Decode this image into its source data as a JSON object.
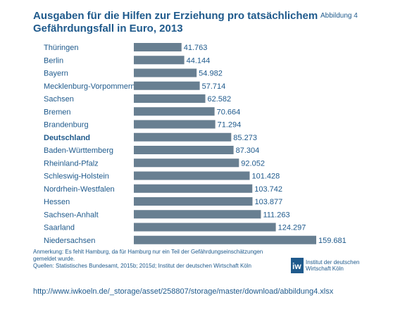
{
  "figure_label": "Abbildung 4",
  "title_line1": "Ausgaben für die Hilfen zur Erziehung pro tatsächlichem",
  "title_line2": "Gefährdungsfall in Euro, 2013",
  "note_line1": "Anmerkung: Es fehlt Hamburg, da für Hamburg nur ein Teil der Gefährdungseinschätzungen",
  "note_line2": "gemeldet wurde.",
  "note_line3": "Quellen: Statistisches Bundesamt, 2015b; 2015d; Institut der deutschen Wirtschaft Köln",
  "logo": {
    "line1": "Institut der deutschen",
    "line2": "Wirtschaft Köln",
    "colors": {
      "mark": "#1f5a8c"
    }
  },
  "url": "http://www.iwkoeln.de/_storage/asset/258807/storage/master/download/abbildung4.xlsx",
  "colors": {
    "bar": "#687f91",
    "text": "#1f5a8c"
  },
  "chart_data": {
    "type": "bar",
    "orientation": "horizontal",
    "title": "Ausgaben für die Hilfen zur Erziehung pro tatsächlichem Gefährdungsfall in Euro, 2013",
    "categories": [
      "Thüringen",
      "Berlin",
      "Bayern",
      "Mecklenburg-Vorpommern",
      "Sachsen",
      "Bremen",
      "Brandenburg",
      "Deutschland",
      "Baden-Württemberg",
      "Rheinland-Pfalz",
      "Schleswig-Holstein",
      "Nordrhein-Westfalen",
      "Hessen",
      "Sachsen-Anhalt",
      "Saarland",
      "Niedersachsen"
    ],
    "values": [
      41763,
      44144,
      54982,
      57714,
      62582,
      70664,
      71294,
      85273,
      87304,
      92052,
      101428,
      103742,
      103877,
      111263,
      124297,
      159681
    ],
    "value_labels": [
      "41.763",
      "44.144",
      "54.982",
      "57.714",
      "62.582",
      "70.664",
      "71.294",
      "85.273",
      "87.304",
      "92.052",
      "101.428",
      "103.742",
      "103.877",
      "111.263",
      "124.297",
      "159.681"
    ],
    "highlighted_category": "Deutschland",
    "xlim": [
      0,
      160000
    ],
    "grid": false,
    "axis_visible": false
  }
}
